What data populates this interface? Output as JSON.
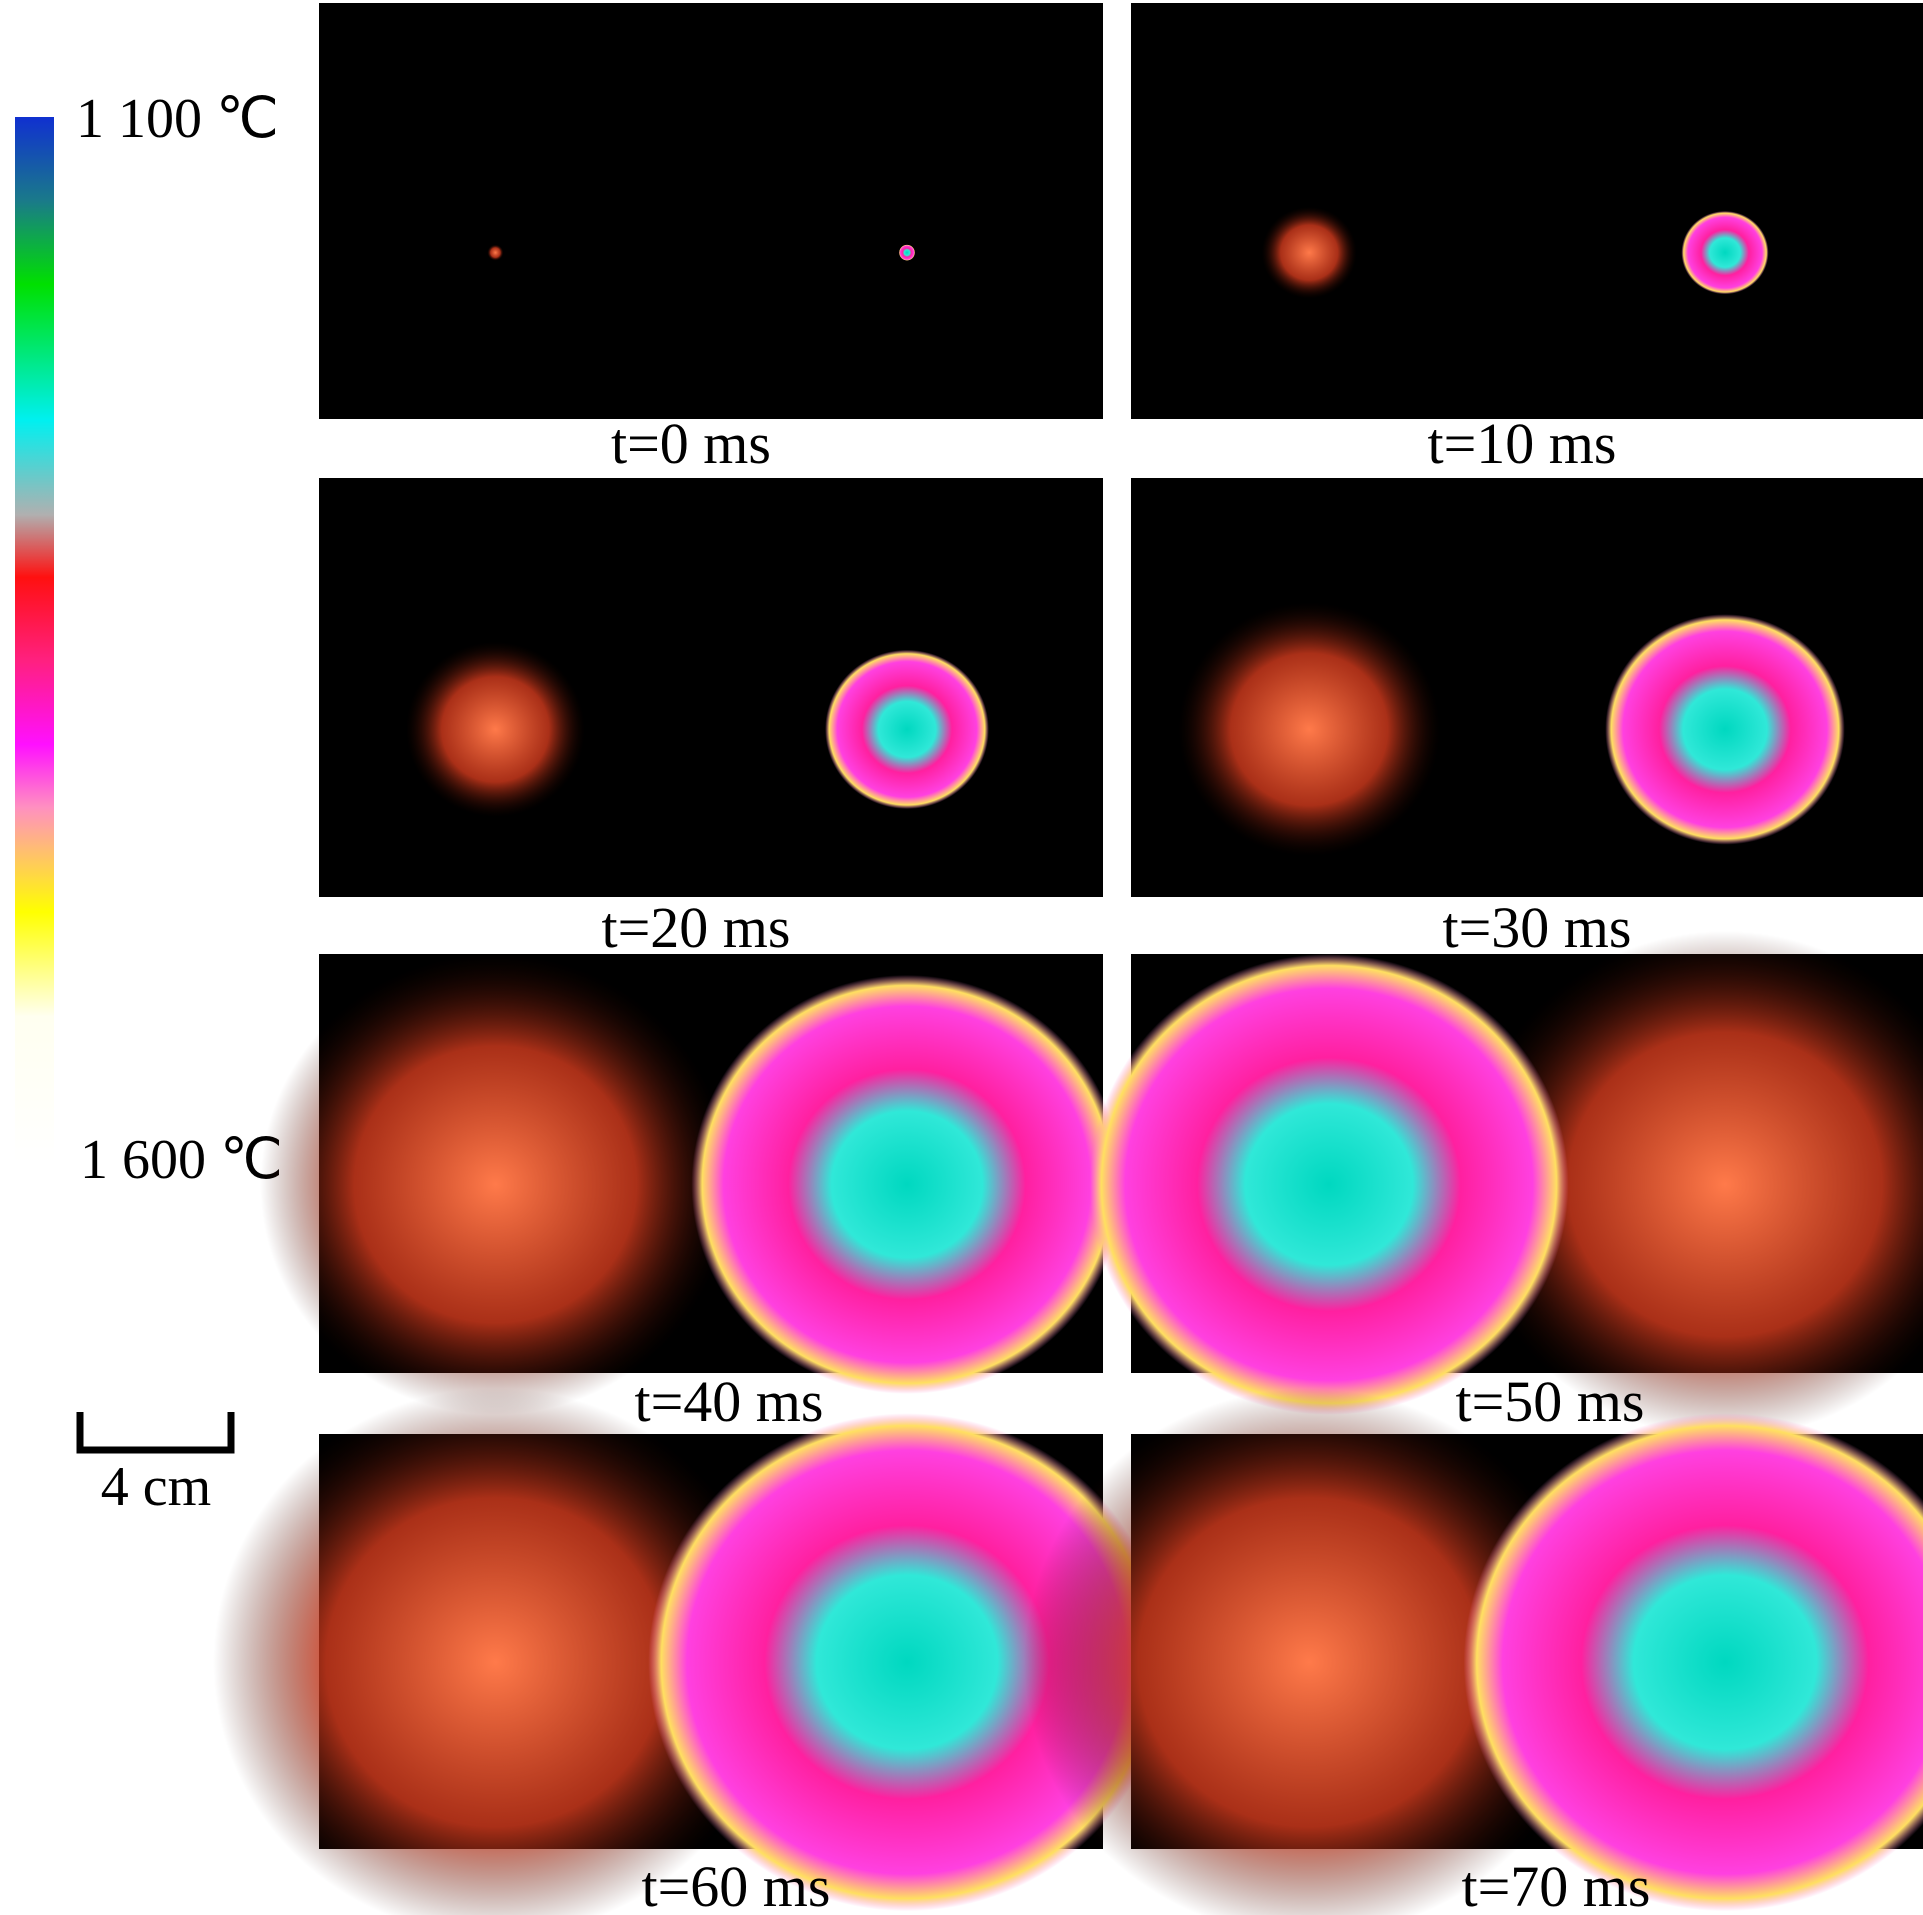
{
  "colorbar": {
    "top_label": "1 100 ℃",
    "bottom_label": "1 600 ℃"
  },
  "scale_bar": {
    "label": "4 cm"
  },
  "panels": [
    {
      "caption": "t=0 ms"
    },
    {
      "caption": "t=10 ms"
    },
    {
      "caption": "t=20 ms"
    },
    {
      "caption": "t=30 ms"
    },
    {
      "caption": "t=40 ms"
    },
    {
      "caption": "t=50 ms"
    },
    {
      "caption": "t=60 ms"
    },
    {
      "caption": "t=70 ms"
    }
  ]
}
